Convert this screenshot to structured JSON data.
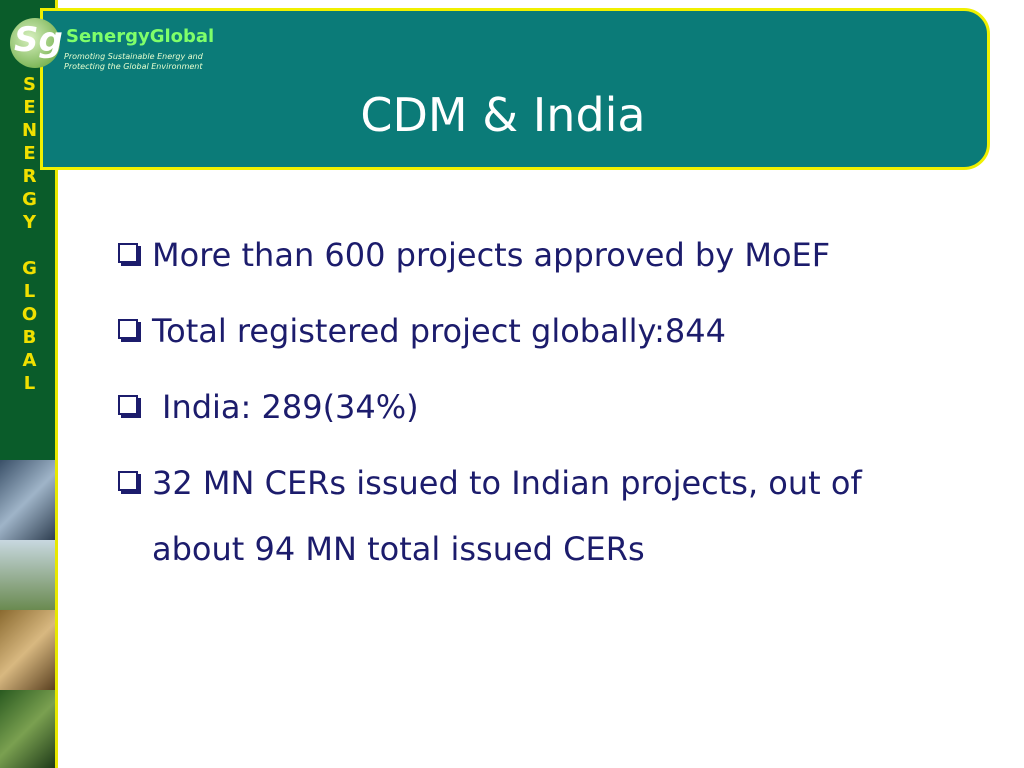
{
  "logo": {
    "name": "SenergyGlobal",
    "tagline": [
      "Promoting Sustainable Energy and",
      "Protecting the Global Environment"
    ]
  },
  "sidebar": "SENERGY GLOBAL",
  "title": "CDM & India",
  "bullets": [
    "More than 600 projects approved by MoEF",
    "Total registered project globally:844",
    "India: 289(34%)",
    "32 MN CERs issued to Indian projects, out of about 94 MN total issued CERs"
  ]
}
